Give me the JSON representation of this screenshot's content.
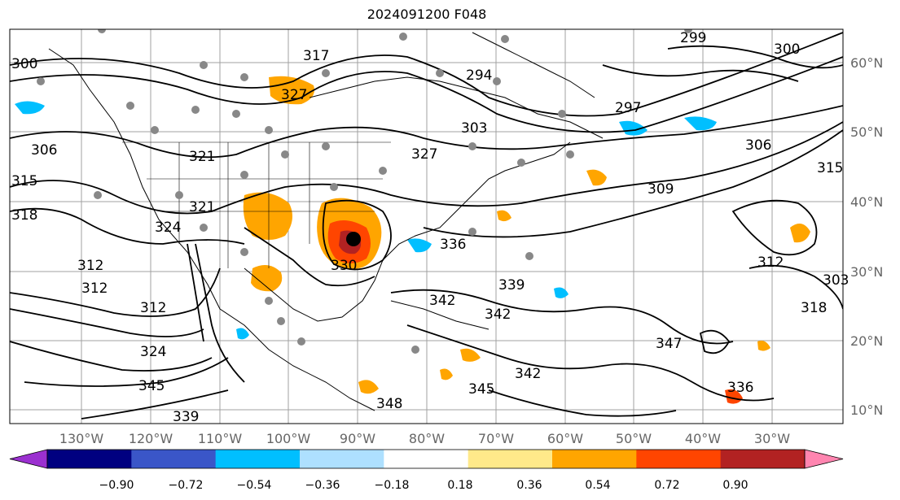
{
  "title": "2024091200 F048",
  "lat_labels": [
    "60°N",
    "50°N",
    "40°N",
    "30°N",
    "20°N",
    "10°N"
  ],
  "lon_labels": [
    "130°W",
    "120°W",
    "110°W",
    "100°W",
    "90°W",
    "80°W",
    "70°W",
    "60°W",
    "50°W",
    "40°W",
    "30°W"
  ],
  "colorbar": {
    "ticks": [
      "−0.90",
      "−0.72",
      "−0.54",
      "−0.36",
      "−0.18",
      "0.18",
      "0.36",
      "0.54",
      "0.72",
      "0.90"
    ],
    "colors": [
      "#9b30d0",
      "#000080",
      "#3a56c8",
      "#00bfff",
      "#aee0ff",
      "#ffffff",
      "#ffe98a",
      "#ffa500",
      "#ff4500",
      "#b22222",
      "#ff85b0"
    ]
  },
  "contour_labels": [
    "300",
    "294",
    "297",
    "303",
    "306",
    "306",
    "309",
    "312",
    "312",
    "312",
    "312",
    "315",
    "318",
    "321",
    "321",
    "324",
    "324",
    "327",
    "327",
    "330",
    "336",
    "336",
    "339",
    "339",
    "342",
    "342",
    "342",
    "345",
    "345",
    "347",
    "348",
    "303",
    "300",
    "299",
    "315",
    "317",
    "318"
  ],
  "cyclone_marker": "hurricane-center"
}
